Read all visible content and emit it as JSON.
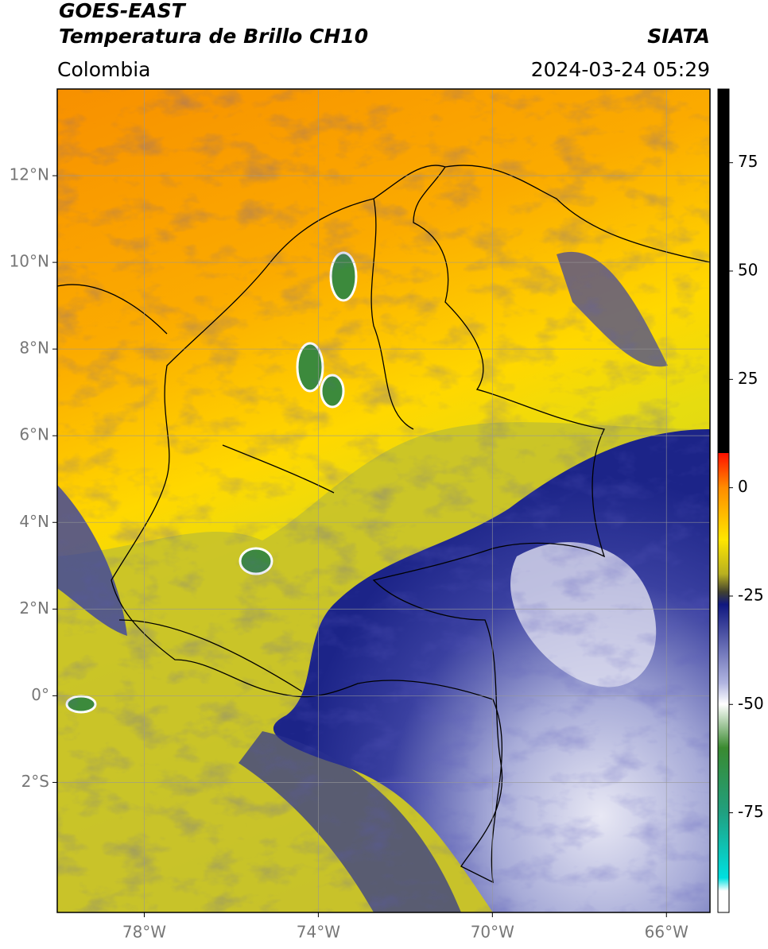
{
  "header": {
    "title": "GOES-EAST",
    "subtitle": "Temperatura de Brillo CH10",
    "source": "SIATA",
    "region": "Colombia",
    "datetime": "2024-03-24 05:29"
  },
  "map": {
    "xlim": [
      -80,
      -65
    ],
    "ylim": [
      -5,
      14
    ],
    "xticks": [
      {
        "value": -78,
        "label": "78°W"
      },
      {
        "value": -74,
        "label": "74°W"
      },
      {
        "value": -70,
        "label": "70°W"
      },
      {
        "value": -66,
        "label": "66°W"
      }
    ],
    "yticks": [
      {
        "value": 12,
        "label": "12°N"
      },
      {
        "value": 10,
        "label": "10°N"
      },
      {
        "value": 8,
        "label": "8°N"
      },
      {
        "value": 6,
        "label": "6°N"
      },
      {
        "value": 4,
        "label": "4°N"
      },
      {
        "value": 2,
        "label": "2°N"
      },
      {
        "value": 0,
        "label": "0°"
      },
      {
        "value": -2,
        "label": "2°S"
      }
    ],
    "grid": true
  },
  "colorbar": {
    "lim": [
      -98,
      92
    ],
    "ticks": [
      75,
      50,
      25,
      0,
      -25,
      -50,
      -75
    ]
  }
}
